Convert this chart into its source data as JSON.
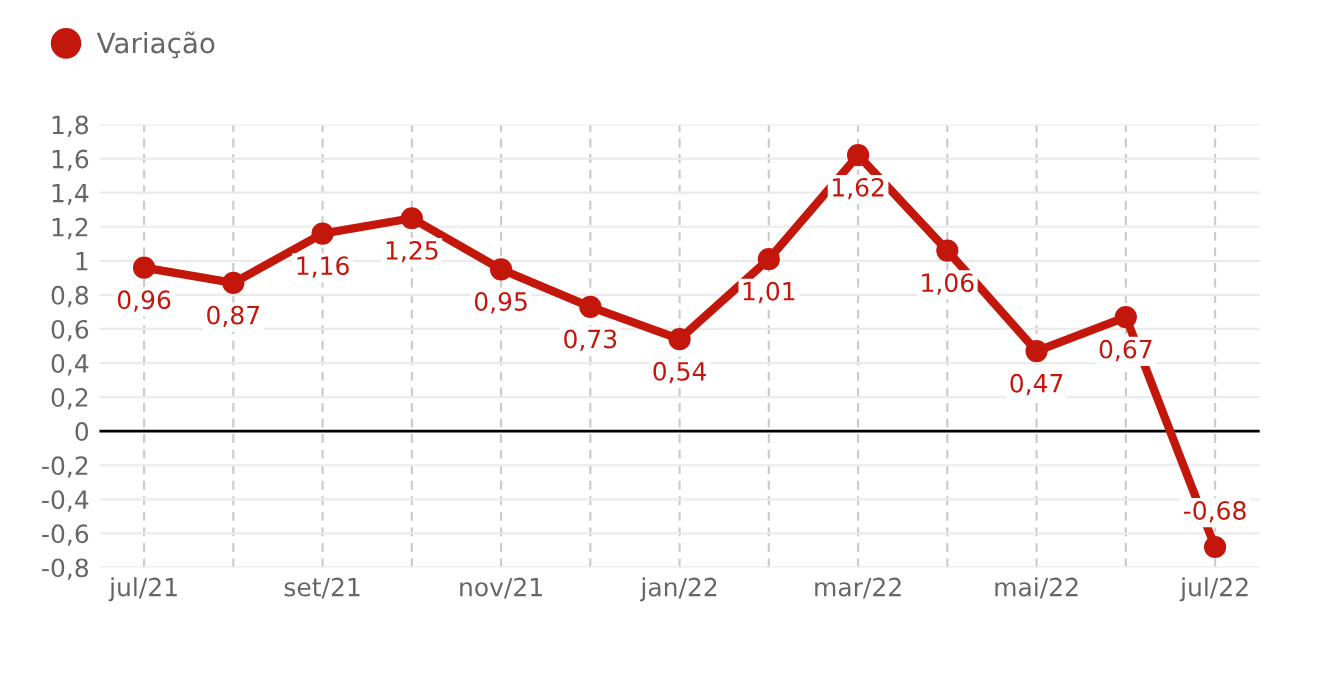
{
  "chart_data": {
    "type": "line",
    "categories": [
      "jul/21",
      null,
      "set/21",
      null,
      "nov/21",
      null,
      "jan/22",
      null,
      "mar/22",
      null,
      "mai/22",
      null,
      "jul/22"
    ],
    "series": [
      {
        "name": "Variação",
        "color": "#c4170c",
        "values": [
          0.96,
          0.87,
          1.16,
          1.25,
          0.95,
          0.73,
          0.54,
          1.01,
          1.62,
          1.06,
          0.47,
          0.67,
          -0.68
        ],
        "value_labels": [
          "0,96",
          "0,87",
          "1,16",
          "1,25",
          "0,95",
          "0,73",
          "0,54",
          "1,01",
          "1,62",
          "1,06",
          "0,47",
          "0,67",
          "-0,68"
        ]
      }
    ],
    "ylim": [
      -0.8,
      1.8
    ],
    "yticks": [
      {
        "value": -0.8,
        "label": "-0,8"
      },
      {
        "value": -0.6,
        "label": "-0,6"
      },
      {
        "value": -0.4,
        "label": "-0,4"
      },
      {
        "value": -0.2,
        "label": "-0,2"
      },
      0,
      {
        "value": 0.2,
        "label": "0,2"
      },
      {
        "value": 0.4,
        "label": "0,4"
      },
      {
        "value": 0.6,
        "label": "0,6"
      },
      {
        "value": 0.8,
        "label": "0,8"
      },
      1,
      {
        "value": 1.2,
        "label": "1,2"
      },
      {
        "value": 1.4,
        "label": "1,4"
      },
      {
        "value": 1.6,
        "label": "1,6"
      },
      {
        "value": 1.8,
        "label": "1,8"
      }
    ],
    "ref_lines": [
      {
        "axis": "y",
        "value": 0,
        "color": "#000000"
      }
    ],
    "grid": true,
    "legend": "top left",
    "marker": "circle",
    "line_style": "solid"
  }
}
